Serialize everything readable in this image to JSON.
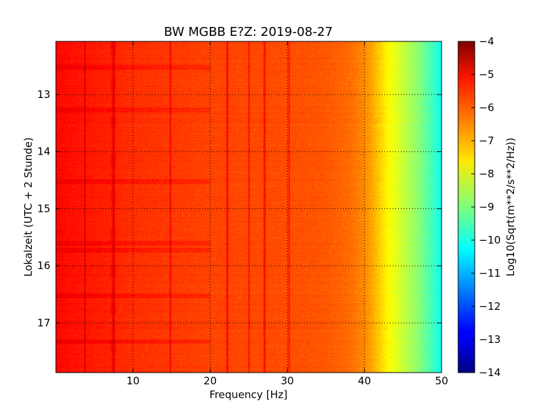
{
  "chart_data": {
    "type": "heatmap",
    "title": "BW MGBB E?Z: 2019-08-27",
    "xlabel": "Frequency [Hz]",
    "ylabel": "Lokalzeit (UTC + 2 Stunde)",
    "xlim": [
      0,
      50
    ],
    "ylim": [
      12.07,
      17.87
    ],
    "y_inverted": true,
    "x_ticks": [
      10,
      20,
      30,
      40,
      50
    ],
    "x_tick_labels": [
      "10",
      "20",
      "30",
      "40",
      "50"
    ],
    "y_ticks": [
      13,
      14,
      15,
      16,
      17
    ],
    "y_tick_labels": [
      "13",
      "14",
      "15",
      "16",
      "17"
    ],
    "grid": true,
    "colormap": "jet",
    "colorbar": {
      "label": "Log10(Sqrt(m**2/s**2/Hz))",
      "range": [
        -14,
        -4
      ],
      "ticks": [
        -4,
        -5,
        -6,
        -7,
        -8,
        -9,
        -10,
        -11,
        -12,
        -13,
        -14
      ],
      "tick_labels": [
        "−4",
        "−5",
        "−6",
        "−7",
        "−8",
        "−9",
        "−10",
        "−11",
        "−12",
        "−13",
        "−14"
      ]
    },
    "spectral_profile": {
      "frequency_hz": [
        0,
        2,
        5,
        10,
        15,
        20,
        25,
        30,
        35,
        38,
        40,
        41,
        42,
        43,
        44,
        45,
        46,
        47,
        48,
        49,
        50
      ],
      "log10_amplitude": [
        -5.3,
        -5.4,
        -5.5,
        -5.7,
        -5.8,
        -5.9,
        -5.95,
        -6.0,
        -6.1,
        -6.3,
        -6.6,
        -6.9,
        -7.3,
        -7.7,
        -8.0,
        -8.3,
        -8.6,
        -8.9,
        -9.3,
        -9.7,
        -10.2
      ]
    },
    "vertical_lines_hz": [
      3.7,
      7.4,
      14.8,
      22.2,
      25.0,
      27.0,
      30.2
    ],
    "time_bands": [
      12.52,
      13.27,
      14.52,
      15.6,
      15.72,
      16.52,
      17.32
    ]
  }
}
